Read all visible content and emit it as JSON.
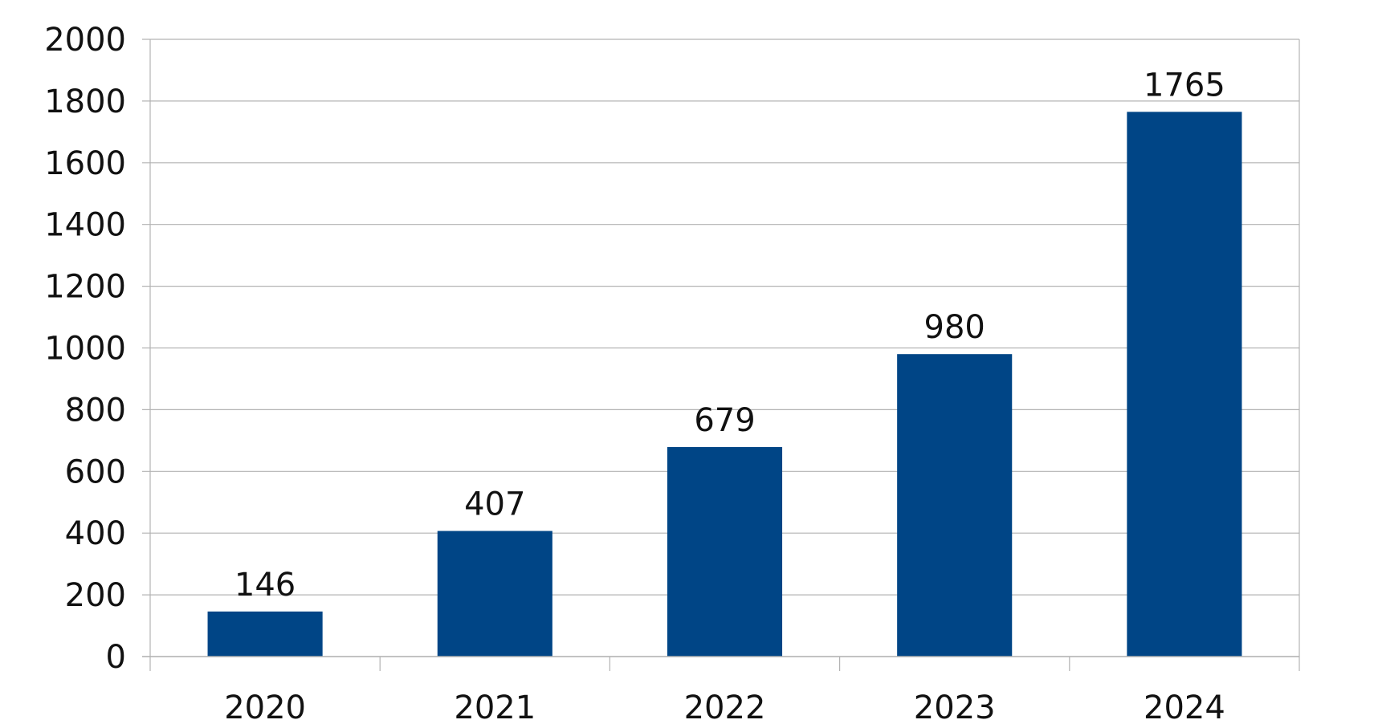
{
  "chart_data": {
    "type": "bar",
    "title": "",
    "xlabel": "",
    "ylabel": "",
    "categories": [
      "2020",
      "2021",
      "2022",
      "2023",
      "2024"
    ],
    "values": [
      146,
      407,
      679,
      980,
      1765
    ],
    "data_labels": [
      "146",
      "407",
      "679",
      "980",
      "1765"
    ],
    "ylim": [
      0,
      2000
    ],
    "y_ticks": [
      0,
      200,
      400,
      600,
      800,
      1000,
      1200,
      1400,
      1600,
      1800,
      2000
    ],
    "y_tick_labels": [
      "0",
      "200",
      "400",
      "600",
      "800",
      "1000",
      "1200",
      "1400",
      "1600",
      "1800",
      "2000"
    ],
    "grid": true,
    "legend": "none",
    "colors": {
      "bar": "#004586",
      "grid": "#b3b3b3",
      "text": "#111111"
    }
  }
}
